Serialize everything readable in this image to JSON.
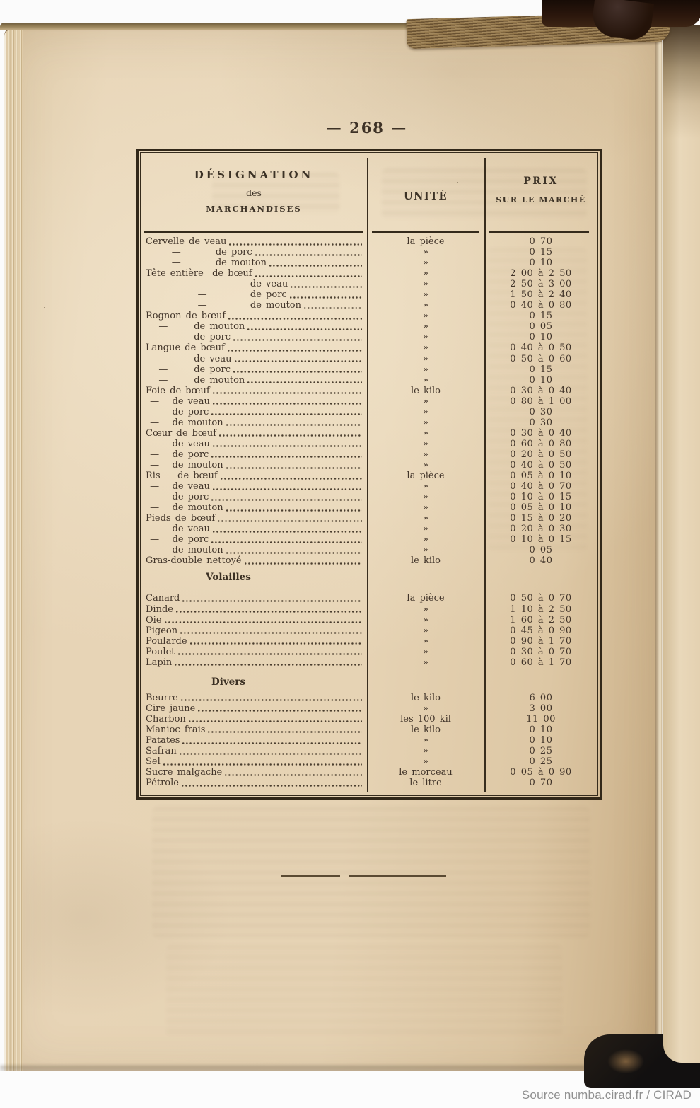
{
  "page": {
    "number": "268",
    "number_label": "— 268 —"
  },
  "source": {
    "label": "Source numba.cirad.fr / CIRAD"
  },
  "colors": {
    "paper": "#e6d3b4",
    "ink": "#42352a",
    "table_border": "#322819",
    "binding_brown": "#241309",
    "attribution_gray": "#8f8f8f",
    "scan_background": "#fbfbfb"
  },
  "table": {
    "headers": {
      "col1": [
        "DÉSIGNATION",
        "des",
        "MARCHANDISES"
      ],
      "col2": [
        "UNITÉ"
      ],
      "col3": [
        "PRIX",
        "SUR LE MARCHÉ"
      ]
    },
    "sections": [
      {
        "id": "viandes",
        "title": null,
        "rows": [
          {
            "label": "Cervelle de veau",
            "unit": "la pièce",
            "price": "0 70"
          },
          {
            "label": "      —        de porc",
            "unit": "»",
            "price": "0 15"
          },
          {
            "label": "      —        de mouton",
            "unit": "»",
            "price": "0 10"
          },
          {
            "label": "Tête entière  de bœuf",
            "unit": "»",
            "price": "2 00 à 2 50"
          },
          {
            "label": "            —          de veau",
            "unit": "»",
            "price": "2 50 à 3 00"
          },
          {
            "label": "            —          de porc",
            "unit": "»",
            "price": "1 50 à 2 40"
          },
          {
            "label": "            —          de mouton",
            "unit": "»",
            "price": "0 40 à 0 80"
          },
          {
            "label": "Rognon de bœuf",
            "unit": "»",
            "price": "0 15"
          },
          {
            "label": "   —      de mouton",
            "unit": "»",
            "price": "0 05"
          },
          {
            "label": "   —      de porc",
            "unit": "»",
            "price": "0 10"
          },
          {
            "label": "Langue de bœuf",
            "unit": "»",
            "price": "0 40 à 0 50"
          },
          {
            "label": "   —      de veau",
            "unit": "»",
            "price": "0 50 à 0 60"
          },
          {
            "label": "   —      de porc",
            "unit": "»",
            "price": "0 15"
          },
          {
            "label": "   —      de mouton",
            "unit": "»",
            "price": "0 10"
          },
          {
            "label": "Foie de bœuf",
            "unit": "le kilo",
            "price": "0 30 à 0 40"
          },
          {
            "label": " —   de veau",
            "unit": "»",
            "price": "0 80 à 1 00"
          },
          {
            "label": " —   de porc",
            "unit": "»",
            "price": "0 30"
          },
          {
            "label": " —   de mouton",
            "unit": "»",
            "price": "0 30"
          },
          {
            "label": "Cœur de bœuf",
            "unit": "»",
            "price": "0 30 à 0 40"
          },
          {
            "label": " —   de veau",
            "unit": "»",
            "price": "0 60 à 0 80"
          },
          {
            "label": " —   de porc",
            "unit": "»",
            "price": "0 20 à 0 50"
          },
          {
            "label": " —   de mouton",
            "unit": "»",
            "price": "0 40 à 0 50"
          },
          {
            "label": "Ris    de bœuf",
            "unit": "la pièce",
            "price": "0 05 à 0 10"
          },
          {
            "label": " —   de veau",
            "unit": "»",
            "price": "0 40 à 0 70"
          },
          {
            "label": " —   de porc",
            "unit": "»",
            "price": "0 10 à 0 15"
          },
          {
            "label": " —   de mouton",
            "unit": "»",
            "price": "0 05 à 0 10"
          },
          {
            "label": "Pieds de bœuf",
            "unit": "»",
            "price": "0 15 à 0 20"
          },
          {
            "label": " —   de veau",
            "unit": "»",
            "price": "0 20 à 0 30"
          },
          {
            "label": " —   de porc",
            "unit": "»",
            "price": "0 10 à 0 15"
          },
          {
            "label": " —   de mouton",
            "unit": "»",
            "price": "0 05"
          },
          {
            "label": "Gras-double nettoyé",
            "unit": "le kilo",
            "price": "0 40"
          }
        ]
      },
      {
        "id": "volailles",
        "title": "Volailles",
        "rows": [
          {
            "label": "Canard",
            "unit": "la pièce",
            "price": "0 50 à 0 70"
          },
          {
            "label": "Dinde",
            "unit": "»",
            "price": "1 10 à 2 50"
          },
          {
            "label": "Oie",
            "unit": "»",
            "price": "1 60 à 2 50"
          },
          {
            "label": "Pigeon",
            "unit": "»",
            "price": "0 45 à 0 90"
          },
          {
            "label": "Poularde",
            "unit": "»",
            "price": "0 90 à 1 70"
          },
          {
            "label": "Poulet",
            "unit": "»",
            "price": "0 30 à 0 70"
          },
          {
            "label": "Lapin",
            "unit": "»",
            "price": "0 60 à 1 70"
          }
        ]
      },
      {
        "id": "divers",
        "title": "Divers",
        "rows": [
          {
            "label": "Beurre",
            "unit": "le kilo",
            "price": "6 00"
          },
          {
            "label": "Cire jaune",
            "unit": "»",
            "price": "3 00"
          },
          {
            "label": "Charbon",
            "unit": "les 100 kil",
            "price": "11 00"
          },
          {
            "label": "Manioc frais",
            "unit": "le kilo",
            "price": "0 10"
          },
          {
            "label": "Patates",
            "unit": "»",
            "price": "0 10"
          },
          {
            "label": "Safran",
            "unit": "»",
            "price": "0 25"
          },
          {
            "label": "Sel",
            "unit": "»",
            "price": "0 25"
          },
          {
            "label": "Sucre malgache",
            "unit": "le morceau",
            "price": "0 05 à 0 90"
          },
          {
            "label": "Pétrole",
            "unit": "le litre",
            "price": "0 70"
          }
        ]
      }
    ]
  }
}
